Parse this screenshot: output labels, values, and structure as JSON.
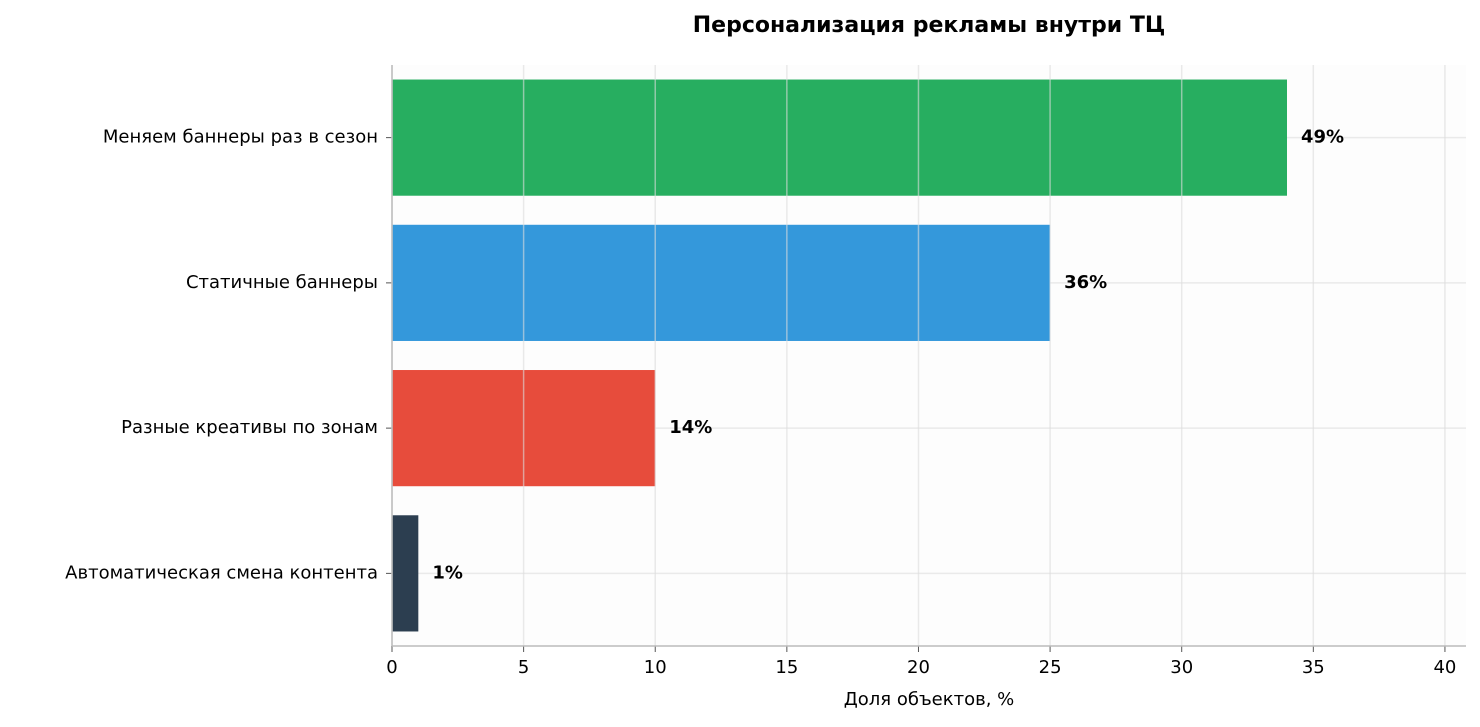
{
  "chart_data": {
    "type": "hbar",
    "title": "Персонализация рекламы внутри ТЦ",
    "categories": [
      "Меняем баннеры раз в сезон",
      "Статичные баннеры",
      "Разные креативы по зонам",
      "Автоматическая смена контента"
    ],
    "values": [
      34,
      25,
      10,
      1
    ],
    "colors": [
      "#27ae60",
      "#3498db",
      "#e74c3c",
      "#2c3e50"
    ],
    "annotations": [
      "49%",
      "36%",
      "14%",
      "1%"
    ],
    "xlabel": "Доля объектов, %",
    "xlim": [
      0,
      40.8
    ],
    "xticks": [
      0,
      5,
      10,
      15,
      20,
      25,
      30,
      35,
      40
    ],
    "grid": true
  }
}
